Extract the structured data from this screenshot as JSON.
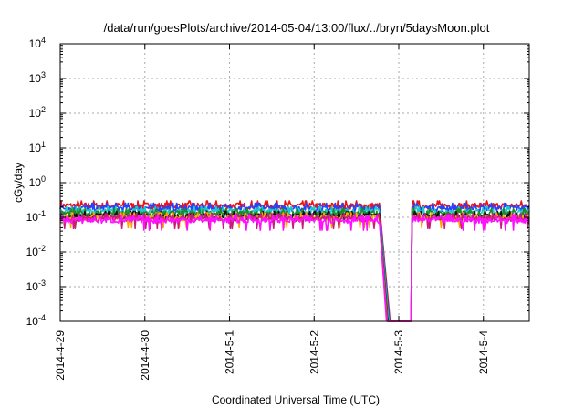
{
  "chart_data": {
    "type": "line",
    "title": "/data/run/goesPlots/archive/2014-05-04/13:00/flux/../bryn/5daysMoon.plot",
    "xlabel": "Coordinated Universal Time (UTC)",
    "ylabel": "cGy/day",
    "y_scale": "log",
    "ylim": [
      0.0001,
      10000
    ],
    "xlim": [
      "2014-04-29T00:00",
      "2014-05-04T13:00"
    ],
    "grid": true,
    "legend": "none",
    "y_ticks": [
      {
        "base": "10",
        "exp": "-4"
      },
      {
        "base": "10",
        "exp": "-3"
      },
      {
        "base": "10",
        "exp": "-2"
      },
      {
        "base": "10",
        "exp": "-1"
      },
      {
        "base": "10",
        "exp": "0"
      },
      {
        "base": "10",
        "exp": "1"
      },
      {
        "base": "10",
        "exp": "2"
      },
      {
        "base": "10",
        "exp": "3"
      },
      {
        "base": "10",
        "exp": "4"
      }
    ],
    "x_ticks": [
      "2014-4-29",
      "2014-4-30",
      "2014-5-1",
      "2014-5-2",
      "2014-5-3",
      "2014-5-4"
    ],
    "dropout": {
      "start": "2014-05-02T21:30",
      "end": "2014-05-03T03:40"
    },
    "series": [
      {
        "color": "#ee1111",
        "baseline": 0.22
      },
      {
        "color": "#2244ff",
        "baseline": 0.19
      },
      {
        "color": "#1ec8c8",
        "baseline": 0.15
      },
      {
        "color": "#228822",
        "baseline": 0.13
      },
      {
        "color": "#111111",
        "baseline": 0.11
      },
      {
        "color": "#ffa500",
        "baseline": 0.1
      },
      {
        "color": "#c81e78",
        "baseline": 0.095
      },
      {
        "color": "#ff11ff",
        "baseline": 0.085
      }
    ]
  }
}
